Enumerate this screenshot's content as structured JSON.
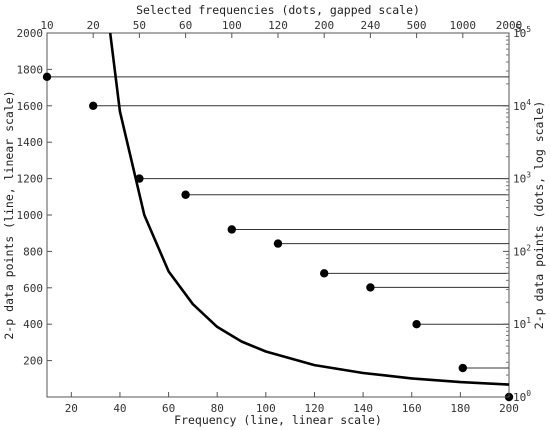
{
  "chart_data": {
    "type": "line",
    "top_axis": {
      "title": "Selected frequencies (dots, gapped scale)",
      "tick_labels": [
        "10",
        "20",
        "50",
        "60",
        "100",
        "120",
        "200",
        "240",
        "500",
        "1000",
        "2000"
      ],
      "exponent_label": "5"
    },
    "x_axis": {
      "title": "Frequency (line, linear scale)",
      "range": [
        10,
        200
      ],
      "ticks": [
        20,
        40,
        60,
        80,
        100,
        120,
        140,
        160,
        180,
        200
      ]
    },
    "y_left_axis": {
      "title": "2-p data points (line, linear scale)",
      "range": [
        0,
        2000
      ],
      "ticks": [
        200,
        400,
        600,
        800,
        1000,
        1200,
        1400,
        1600,
        1800,
        2000
      ]
    },
    "y_right_axis": {
      "title": "2-p data points (dots, log scale)",
      "scale": "log",
      "range": [
        1,
        100000
      ],
      "ticks": [
        {
          "value": 1,
          "base": "10",
          "exp": "0"
        },
        {
          "value": 10,
          "base": "10",
          "exp": "1"
        },
        {
          "value": 100,
          "base": "10",
          "exp": "2"
        },
        {
          "value": 1000,
          "base": "10",
          "exp": "3"
        },
        {
          "value": 10000,
          "base": "10",
          "exp": "4"
        },
        {
          "value": 100000,
          "base": "10",
          "exp": "5"
        }
      ]
    },
    "line_series": {
      "x": [
        36,
        40,
        50,
        60,
        70,
        80,
        90,
        100,
        120,
        140,
        160,
        180,
        200
      ],
      "y": [
        2000,
        1570,
        1000,
        690,
        510,
        385,
        305,
        250,
        175,
        132,
        102,
        82,
        68
      ]
    },
    "dot_series": {
      "frequencies": [
        10,
        20,
        50,
        60,
        100,
        120,
        200,
        240,
        500,
        1000,
        2000
      ],
      "values": [
        25000,
        10000,
        1000,
        600,
        200,
        128,
        50,
        32,
        10,
        2.5,
        1
      ]
    },
    "grid": false
  }
}
